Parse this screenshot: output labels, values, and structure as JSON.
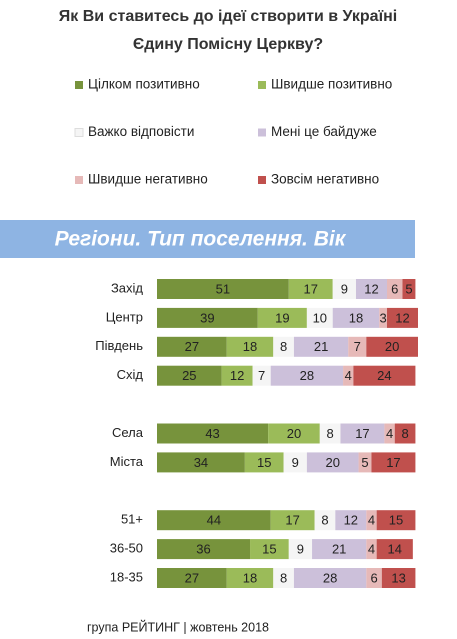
{
  "chart_data": {
    "type": "stacked-bar",
    "title": [
      "Як Ви ставитесь до ідеї створити в Україні",
      "Єдину Помісну Церкву?"
    ],
    "banner": "Регіони. Тип поселення. Вік",
    "footer": "група РЕЙТИНГ | жовтень 2018",
    "categories": [
      "Захід",
      "Центр",
      "Південь",
      "Схід",
      null,
      "Села",
      "Міста",
      null,
      "51+",
      "36-50",
      "18-35"
    ],
    "series": [
      {
        "name": "Цілком позитивно",
        "color": "#77933c",
        "text_color": "#ffffff",
        "values": [
          51,
          39,
          27,
          25,
          null,
          43,
          34,
          null,
          44,
          36,
          27
        ]
      },
      {
        "name": "Швидше позитивно",
        "color": "#9bbb59",
        "text_color": "#222222",
        "values": [
          17,
          19,
          18,
          12,
          null,
          20,
          15,
          null,
          17,
          15,
          18
        ]
      },
      {
        "name": "Важко відповісти",
        "color": "#f5f5f5",
        "text_color": "#222222",
        "values": [
          9,
          10,
          8,
          7,
          null,
          8,
          9,
          null,
          8,
          9,
          8
        ]
      },
      {
        "name": "Мені це байдуже",
        "color": "#ccc0da",
        "text_color": "#222222",
        "values": [
          12,
          18,
          21,
          28,
          null,
          17,
          20,
          null,
          12,
          21,
          28
        ]
      },
      {
        "name": "Швидше негативно",
        "color": "#e6b9b8",
        "text_color": "#222222",
        "values": [
          6,
          3,
          7,
          4,
          null,
          4,
          5,
          null,
          4,
          4,
          6
        ]
      },
      {
        "name": "Зовсім негативно",
        "color": "#c0504d",
        "text_color": "#222222",
        "values": [
          5,
          12,
          20,
          24,
          null,
          8,
          17,
          null,
          15,
          14,
          13
        ]
      }
    ]
  }
}
